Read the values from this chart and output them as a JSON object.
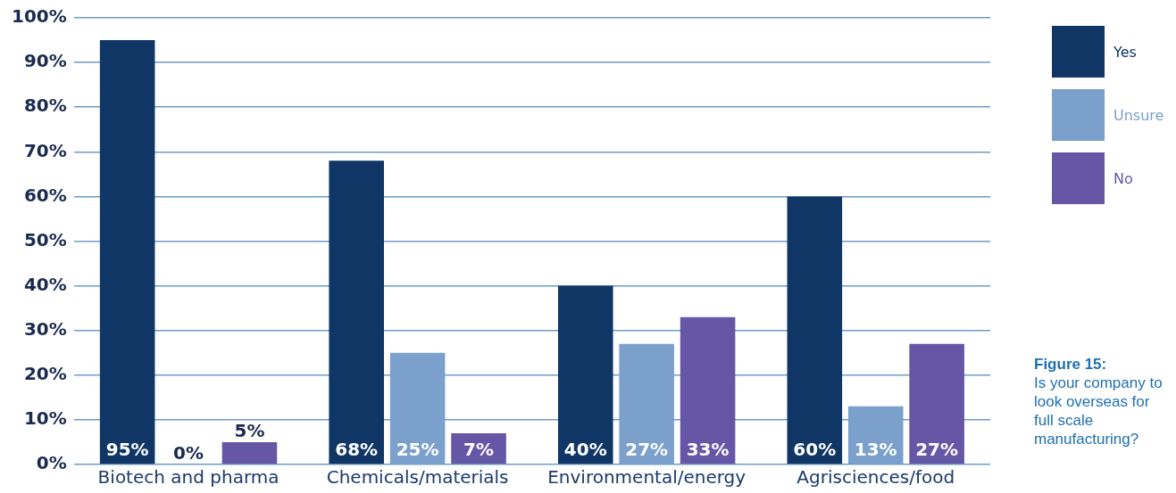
{
  "chart_data": {
    "type": "bar",
    "categories": [
      "Biotech and pharma",
      "Chemicals/materials",
      "Environmental/energy",
      "Agrisciences/food"
    ],
    "series": [
      {
        "name": "Yes",
        "color": "#0f3665",
        "values": [
          95,
          68,
          40,
          60
        ],
        "value_labels": [
          "95%",
          "68%",
          "40%",
          "60%"
        ]
      },
      {
        "name": "Unsure",
        "color": "#7aa0cb",
        "values": [
          0,
          25,
          27,
          13
        ],
        "value_labels": [
          "0%",
          "25%",
          "27%",
          "13%"
        ]
      },
      {
        "name": "No",
        "color": "#6656a6",
        "values": [
          5,
          7,
          33,
          27
        ],
        "value_labels": [
          "5%",
          "7%",
          "33%",
          "27%"
        ]
      }
    ],
    "ylim": [
      0,
      100
    ],
    "yticks": [
      {
        "value": 0,
        "label": "0%"
      },
      {
        "value": 10,
        "label": "10%"
      },
      {
        "value": 20,
        "label": "20%"
      },
      {
        "value": 30,
        "label": "30%"
      },
      {
        "value": 40,
        "label": "40%"
      },
      {
        "value": 50,
        "label": "50%"
      },
      {
        "value": 60,
        "label": "60%"
      },
      {
        "value": 70,
        "label": "70%"
      },
      {
        "value": 80,
        "label": "80%"
      },
      {
        "value": 90,
        "label": "90%"
      },
      {
        "value": 100,
        "label": "100%"
      }
    ],
    "grid": "y",
    "legend": "top right",
    "title": "Figure 15:",
    "subtitle": "Is your company to look overseas for full scale manufacturing?"
  }
}
